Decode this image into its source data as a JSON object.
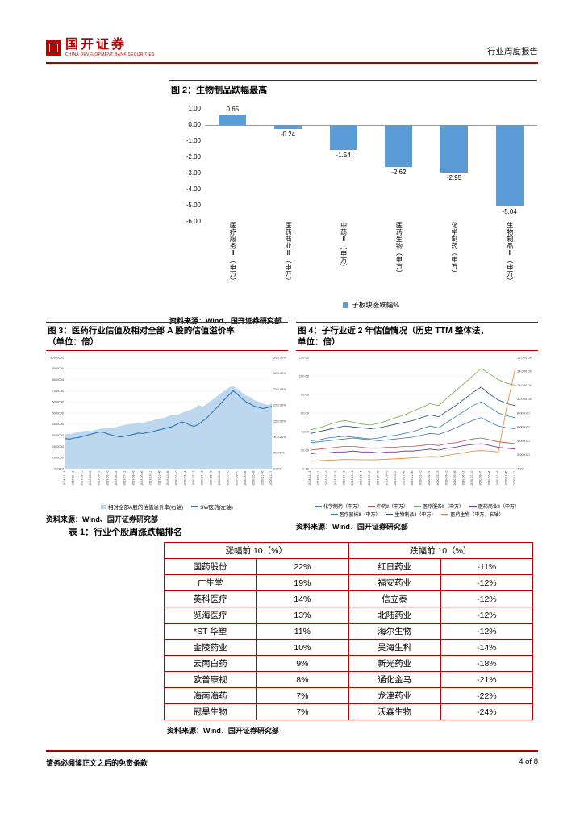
{
  "accent": {
    "red": "#C00000"
  },
  "header": {
    "logo_text": "国开证券",
    "logo_subtext": "CHINA DEVELOPMENT BANK SECURITIES",
    "report_type": "行业周度报告"
  },
  "fig2": {
    "title": "图 2：生物制品跌幅最高",
    "legend": "子板块涨跌幅%",
    "source": "资料来源：Wind、国开证券研究部",
    "chart_data": {
      "type": "bar",
      "categories": [
        "医疗服务Ⅱ（申万）",
        "医药商业Ⅱ（申万）",
        "中药Ⅱ（申万）",
        "医药生物（申万）",
        "化学制药（申万）",
        "生物制品Ⅱ（申万）"
      ],
      "values": [
        0.65,
        -0.24,
        -1.54,
        -2.62,
        -2.95,
        -5.04
      ],
      "value_labels": [
        "0.65",
        "-0.24",
        "-1.54",
        "-2.62",
        "-2.95",
        "-5.04"
      ],
      "yticks": [
        "1.00",
        "0.00",
        "-1.00",
        "-2.00",
        "-3.00",
        "-4.00",
        "-5.00",
        "-6.00"
      ],
      "ylim": [
        -6,
        1
      ],
      "bar_color": "#5B9BD5"
    }
  },
  "fig3": {
    "title_line1": "图 3：医药行业估值及相对全部 A 股的估值溢价率",
    "title_line2": "（单位：倍）",
    "source": "资料来源：Wind、国开证券研究部",
    "chart_data": {
      "type": "area+line",
      "left_range": [
        0,
        100
      ],
      "right_range": [
        0,
        350
      ],
      "left_ticks": [
        "0.0000",
        "10.0000",
        "20.0000",
        "30.0000",
        "40.0000",
        "50.0000",
        "60.0000",
        "70.0000",
        "80.0000",
        "90.0000",
        "100.0000"
      ],
      "right_ticks": [
        "0.00%",
        "50.00%",
        "100.00%",
        "150.00%",
        "200.00%",
        "250.00%",
        "300.00%",
        "350.00%"
      ],
      "x_labels": [
        "2018-12-14",
        "2019-01-11",
        "2019-02-15",
        "2019-03-15",
        "2019-04-12",
        "2019-05-10",
        "2019-06-14",
        "2019-07-12",
        "2019-08-09",
        "2019-09-06",
        "2019-10-11",
        "2019-11-08",
        "2019-12-06",
        "2020-01-10",
        "2020-02-14",
        "2020-03-13",
        "2020-04-10",
        "2020-05-08",
        "2020-06-12",
        "2020-07-10",
        "2020-08-07",
        "2020-09-04",
        "2020-10-09",
        "2020-11-06",
        "2020-11-27"
      ],
      "area_series": {
        "name": "相对全部A股的估值溢价率(右轴)",
        "axis": "right",
        "color": "#BDD7EE",
        "values": [
          110,
          108,
          112,
          115,
          118,
          120,
          118,
          122,
          125,
          128,
          130,
          128,
          132,
          135,
          138,
          140,
          142,
          145,
          143,
          148,
          150,
          155,
          158,
          160,
          165,
          170,
          168,
          175,
          180,
          185,
          190,
          200,
          195,
          205,
          215,
          225,
          235,
          245,
          255,
          260,
          250,
          240,
          230,
          225,
          215,
          210,
          205,
          200,
          205
        ]
      },
      "line_series": {
        "name": "SW医药(左轴)",
        "axis": "left",
        "color": "#2E75B6",
        "values": [
          27,
          26.5,
          27.5,
          28,
          29,
          30,
          31,
          32,
          33,
          32.5,
          31,
          30,
          29,
          28.5,
          29.5,
          30,
          31,
          32,
          31.5,
          32.5,
          33,
          34,
          35,
          36,
          37,
          38,
          40,
          42,
          41,
          39,
          38,
          40,
          43,
          46,
          50,
          54,
          58,
          62,
          66,
          70,
          67,
          63,
          60,
          58,
          56,
          55,
          54,
          55,
          56
        ]
      }
    }
  },
  "fig4": {
    "title_line1": "图 4：子行业近 2 年估值情况（历史 TTM 整体法，",
    "title_line2": "单位：倍）",
    "source": "资料来源：Wind、国开证券研究部",
    "chart_data": {
      "type": "line",
      "left_range": [
        0,
        120
      ],
      "right_range": [
        0,
        16000
      ],
      "left_ticks": [
        "0.00",
        "20.00",
        "40.00",
        "60.00",
        "80.00",
        "100.00",
        "120.00"
      ],
      "right_ticks": [
        "0.00",
        "2,000.00",
        "4,000.00",
        "6,000.00",
        "8,000.00",
        "10,000.00",
        "12,000.00",
        "14,000.00",
        "16,000.00"
      ],
      "x_labels": [
        "2018-12-14",
        "2019-01-11",
        "2019-02-15",
        "2019-03-15",
        "2019-04-12",
        "2019-05-10",
        "2019-06-14",
        "2019-07-12",
        "2019-08-09",
        "2019-09-06",
        "2019-10-11",
        "2019-11-08",
        "2019-12-06",
        "2020-01-10",
        "2020-02-14",
        "2020-03-13",
        "2020-04-10",
        "2020-05-08",
        "2020-06-12",
        "2020-07-10",
        "2020-08-07",
        "2020-09-04",
        "2020-10-09",
        "2020-11-06",
        "2020-11-27"
      ],
      "series": [
        {
          "name": "化学制药（申万）",
          "axis": "left",
          "color": "#4472C4",
          "values": [
            28,
            29,
            30,
            31,
            32,
            33,
            32,
            31,
            30,
            31,
            32,
            33,
            34,
            36,
            38,
            37,
            40,
            44,
            48,
            52,
            55,
            50,
            46,
            44,
            43
          ]
        },
        {
          "name": "中药Ⅱ（申万）",
          "axis": "left",
          "color": "#C0504D",
          "values": [
            20,
            21,
            22,
            23,
            24,
            24,
            23,
            22,
            22,
            23,
            23,
            24,
            24,
            25,
            26,
            25,
            27,
            28,
            30,
            32,
            33,
            31,
            29,
            28,
            27
          ]
        },
        {
          "name": "医疗服务Ⅱ（申万）",
          "axis": "left",
          "color": "#70AD47",
          "values": [
            42,
            44,
            47,
            50,
            52,
            50,
            48,
            47,
            49,
            52,
            55,
            58,
            62,
            66,
            70,
            68,
            76,
            84,
            92,
            100,
            108,
            102,
            96,
            92,
            90
          ]
        },
        {
          "name": "医药商业Ⅱ（申万）",
          "axis": "left",
          "color": "#7030A0",
          "values": [
            16,
            17,
            17,
            18,
            18,
            19,
            18,
            18,
            17,
            18,
            18,
            19,
            19,
            20,
            21,
            20,
            22,
            23,
            25,
            26,
            27,
            25,
            23,
            22,
            21
          ]
        },
        {
          "name": "医疗器械Ⅱ（申万）",
          "axis": "left",
          "color": "#31859C",
          "values": [
            30,
            31,
            33,
            34,
            35,
            34,
            33,
            32,
            33,
            35,
            36,
            38,
            40,
            43,
            46,
            44,
            50,
            56,
            62,
            68,
            72,
            66,
            60,
            57,
            55
          ]
        },
        {
          "name": "生物制品Ⅱ（申万）",
          "axis": "left",
          "color": "#1F497D",
          "values": [
            38,
            40,
            42,
            44,
            46,
            45,
            44,
            43,
            44,
            46,
            48,
            50,
            52,
            55,
            58,
            56,
            62,
            68,
            75,
            82,
            88,
            80,
            74,
            70,
            68
          ]
        },
        {
          "name": "医药生物（申万，右轴）",
          "axis": "right",
          "color": "#ED7D31",
          "values": [
            1100,
            1150,
            1200,
            1260,
            1320,
            1300,
            1280,
            1260,
            1300,
            1360,
            1420,
            1480,
            1550,
            1650,
            1750,
            1700,
            1900,
            2100,
            2300,
            2500,
            2600,
            2500,
            2400,
            9000,
            14500
          ]
        }
      ]
    }
  },
  "table1": {
    "title": "表 1：行业个股周涨跌幅排名",
    "headers": [
      "涨幅前 10（%）",
      "跌幅前 10（%）"
    ],
    "rows": [
      [
        "国药股份",
        "22%",
        "红日药业",
        "-11%"
      ],
      [
        "广生堂",
        "19%",
        "福安药业",
        "-12%"
      ],
      [
        "英科医疗",
        "14%",
        "信立泰",
        "-12%"
      ],
      [
        "览海医疗",
        "13%",
        "北陆药业",
        "-12%"
      ],
      [
        "*ST 华塑",
        "11%",
        "海尔生物",
        "-12%"
      ],
      [
        "金陵药业",
        "10%",
        "昊海生科",
        "-14%"
      ],
      [
        "云南白药",
        "9%",
        "新光药业",
        "-18%"
      ],
      [
        "欧普康视",
        "8%",
        "通化金马",
        "-21%"
      ],
      [
        "海南海药",
        "7%",
        "龙津药业",
        "-22%"
      ],
      [
        "冠昊生物",
        "7%",
        "沃森生物",
        "-24%"
      ]
    ],
    "source": "资料来源：Wind、国开证券研究部"
  },
  "footer": {
    "disclaimer": "请务必阅读正文之后的免责条款",
    "page": "4 of 8"
  }
}
